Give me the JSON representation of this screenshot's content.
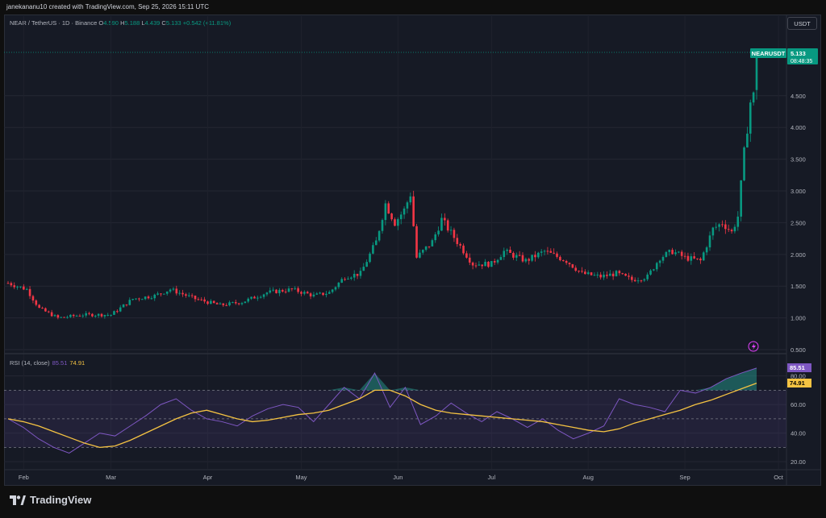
{
  "header": {
    "attribution": "janekananu10 created with TradingView.com, Sep 25, 2026 15:11 UTC"
  },
  "symbol": {
    "title": "NEAR / TetherUS · 1D · Binance",
    "o_label": "O",
    "o": "4.590",
    "h_label": "H",
    "h": "5.188",
    "l_label": "L",
    "l": "4.439",
    "c_label": "C",
    "c": "5.133",
    "change": "+0.542 (+11.81%)"
  },
  "unit_button": "USDT",
  "price_tag": {
    "name": "NEARUSDT",
    "price": "5.133",
    "countdown": "08:48:35"
  },
  "rsi_legend": {
    "label": "RSI (14, close)",
    "rsi": "85.51",
    "ma": "74.91"
  },
  "footer": {
    "logo_text": "TradingView"
  },
  "colors": {
    "up": "#089981",
    "down": "#f23645",
    "rsi": "#7e57c2",
    "rsi_ma": "#f5c342",
    "background": "#161a25"
  },
  "chart_data": [
    {
      "type": "candlestick",
      "series_name": "NEARUSDT",
      "x_ticks": [
        "Feb",
        "Mar",
        "Apr",
        "May",
        "Jun",
        "Jul",
        "Aug",
        "Sep",
        "Oct"
      ],
      "y_ticks": [
        "0.500",
        "1.000",
        "1.500",
        "2.000",
        "2.500",
        "3.000",
        "3.500",
        "4.000",
        "4.500"
      ],
      "ylim": [
        0.45,
        5.5
      ],
      "last": {
        "open": 4.59,
        "high": 5.188,
        "low": 4.439,
        "close": 5.133
      },
      "approx_daily_close_anchors": [
        {
          "day": "Jan 27",
          "close": 1.55
        },
        {
          "day": "Feb 2",
          "close": 1.45
        },
        {
          "day": "Feb 6",
          "close": 1.15
        },
        {
          "day": "Feb 12",
          "close": 1.0
        },
        {
          "day": "Feb 20",
          "close": 1.05
        },
        {
          "day": "Mar 1",
          "close": 1.05
        },
        {
          "day": "Mar 8",
          "close": 1.3
        },
        {
          "day": "Mar 15",
          "close": 1.35
        },
        {
          "day": "Mar 20",
          "close": 1.45
        },
        {
          "day": "Mar 28",
          "close": 1.3
        },
        {
          "day": "Apr 5",
          "close": 1.2
        },
        {
          "day": "Apr 12",
          "close": 1.25
        },
        {
          "day": "Apr 20",
          "close": 1.4
        },
        {
          "day": "Apr 28",
          "close": 1.45
        },
        {
          "day": "May 5",
          "close": 1.35
        },
        {
          "day": "May 10",
          "close": 1.4
        },
        {
          "day": "May 15",
          "close": 1.65
        },
        {
          "day": "May 20",
          "close": 1.7
        },
        {
          "day": "May 25",
          "close": 2.2
        },
        {
          "day": "May 28",
          "close": 2.8
        },
        {
          "day": "May 31",
          "close": 2.5
        },
        {
          "day": "Jun 3",
          "close": 2.7
        },
        {
          "day": "Jun 5",
          "close": 2.95
        },
        {
          "day": "Jun 7",
          "close": 1.95
        },
        {
          "day": "Jun 12",
          "close": 2.2
        },
        {
          "day": "Jun 15",
          "close": 2.55
        },
        {
          "day": "Jun 20",
          "close": 2.2
        },
        {
          "day": "Jun 25",
          "close": 1.85
        },
        {
          "day": "Jul 1",
          "close": 1.85
        },
        {
          "day": "Jul 5",
          "close": 2.05
        },
        {
          "day": "Jul 12",
          "close": 1.9
        },
        {
          "day": "Jul 18",
          "close": 2.05
        },
        {
          "day": "Jul 25",
          "close": 1.9
        },
        {
          "day": "Jul 30",
          "close": 1.7
        },
        {
          "day": "Aug 5",
          "close": 1.65
        },
        {
          "day": "Aug 10",
          "close": 1.7
        },
        {
          "day": "Aug 15",
          "close": 1.6
        },
        {
          "day": "Aug 20",
          "close": 1.65
        },
        {
          "day": "Aug 24",
          "close": 1.95
        },
        {
          "day": "Aug 28",
          "close": 2.05
        },
        {
          "day": "Sep 1",
          "close": 1.95
        },
        {
          "day": "Sep 6",
          "close": 1.9
        },
        {
          "day": "Sep 10",
          "close": 2.4
        },
        {
          "day": "Sep 13",
          "close": 2.5
        },
        {
          "day": "Sep 16",
          "close": 2.35
        },
        {
          "day": "Sep 18",
          "close": 2.6
        },
        {
          "day": "Sep 20",
          "close": 3.6
        },
        {
          "day": "Sep 22",
          "close": 4.4
        },
        {
          "day": "Sep 24",
          "close": 4.59
        },
        {
          "day": "Sep 25",
          "close": 5.133
        }
      ]
    },
    {
      "type": "line",
      "title": "RSI (14, close)",
      "y_ticks": [
        "20.00",
        "40.00",
        "60.00",
        "80.00"
      ],
      "ylim": [
        15,
        95
      ],
      "bands": {
        "upper": 70,
        "middle": 50,
        "lower": 30
      },
      "series": [
        {
          "name": "RSI",
          "last": 85.51,
          "approx_values": [
            50,
            44,
            36,
            30,
            26,
            33,
            40,
            38,
            45,
            52,
            60,
            64,
            56,
            50,
            48,
            45,
            52,
            57,
            60,
            58,
            48,
            60,
            72,
            64,
            82,
            58,
            72,
            46,
            52,
            61,
            54,
            48,
            55,
            50,
            44,
            50,
            42,
            36,
            40,
            45,
            64,
            60,
            58,
            55,
            70,
            68,
            72,
            78,
            82,
            85.51
          ]
        },
        {
          "name": "RSI-based MA",
          "last": 74.91,
          "approx_values": [
            50,
            48,
            45,
            41,
            37,
            33,
            30,
            31,
            35,
            40,
            45,
            50,
            54,
            56,
            53,
            50,
            48,
            49,
            51,
            53,
            54,
            56,
            60,
            64,
            70,
            70,
            66,
            60,
            56,
            54,
            53,
            52,
            51,
            50,
            49,
            48,
            46,
            44,
            42,
            41,
            43,
            47,
            50,
            53,
            56,
            60,
            63,
            67,
            71,
            74.91
          ]
        }
      ]
    }
  ]
}
